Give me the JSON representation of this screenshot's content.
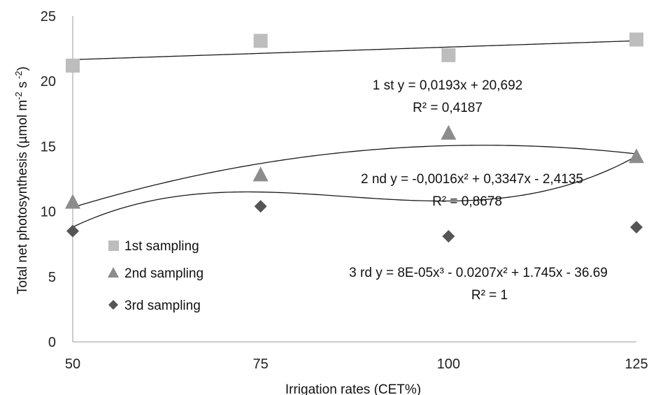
{
  "chart_data": {
    "type": "scatter",
    "xlabel": "Irrigation rates (CET%)",
    "ylabel": "Total net photosynthesis (µmol m-2 s-2)",
    "x": [
      50,
      75,
      100,
      125
    ],
    "xlim": [
      50,
      125
    ],
    "ylim": [
      0,
      25
    ],
    "x_ticks": [
      50,
      75,
      100,
      125
    ],
    "y_ticks": [
      0,
      5,
      10,
      15,
      20,
      25
    ],
    "grid": false,
    "legend_position": "left",
    "series": [
      {
        "name": "1st sampling",
        "marker": "square",
        "color": "#BDBDBD",
        "values": [
          21.2,
          23.1,
          22.0,
          23.2
        ],
        "trendline": {
          "type": "linear",
          "coef": [
            20.692,
            0.0193
          ]
        }
      },
      {
        "name": "2nd sampling",
        "marker": "triangle",
        "color": "#8C8C8C",
        "values": [
          10.7,
          12.8,
          16.0,
          14.2
        ],
        "trendline": {
          "type": "poly2",
          "coef": [
            -2.4135,
            0.3347,
            -0.0016
          ]
        }
      },
      {
        "name": "3rd sampling",
        "marker": "diamond",
        "color": "#555555",
        "values": [
          8.5,
          10.4,
          8.1,
          8.8
        ],
        "trendline": {
          "type": "poly3",
          "coef": [
            -36.69,
            1.745,
            -0.0207,
            8e-05
          ]
        }
      }
    ],
    "annotations": [
      {
        "line1": "1 st y = 0,0193x + 20,692",
        "line2": "R² = 0,4187"
      },
      {
        "line1": "2  nd  y = -0,0016x² + 0,3347x - 2,4135",
        "line2": "R² = 0,8678"
      },
      {
        "line1": "3 rd  y = 8E-05x³ - 0.0207x² + 1.745x - 36.69",
        "line2": "R² = 1"
      }
    ]
  }
}
